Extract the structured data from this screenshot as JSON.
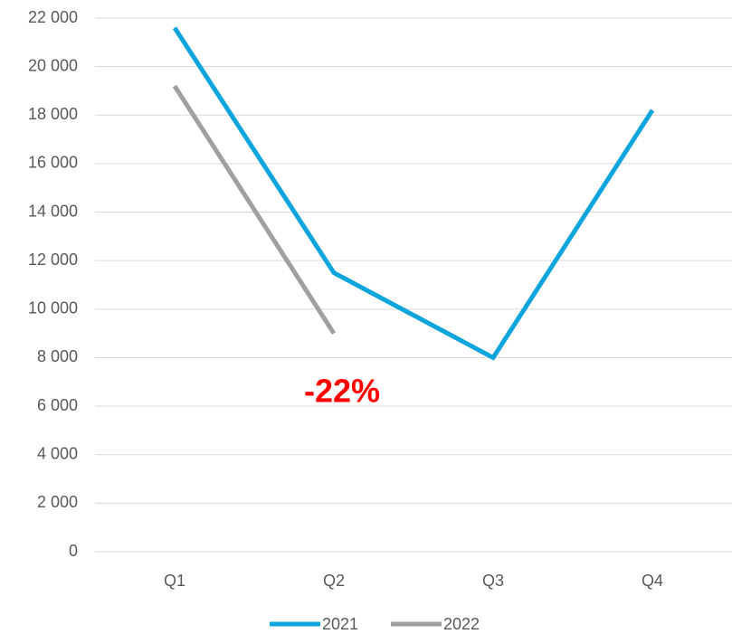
{
  "chart_data": {
    "type": "line",
    "categories": [
      "Q1",
      "Q2",
      "Q3",
      "Q4"
    ],
    "series": [
      {
        "name": "2021",
        "color": "#0ea5de",
        "values": [
          21600,
          11500,
          8000,
          18200
        ]
      },
      {
        "name": "2022",
        "color": "#a0a0a0",
        "values": [
          19200,
          9000,
          null,
          null
        ]
      }
    ],
    "ylim": [
      0,
      22000
    ],
    "yticks": [
      0,
      {
        "value": 2000,
        "label": "2 000"
      },
      {
        "value": 4000,
        "label": "4 000"
      },
      {
        "value": 6000,
        "label": "6 000"
      },
      {
        "value": 8000,
        "label": "8 000"
      },
      {
        "value": 10000,
        "label": "10 000"
      },
      {
        "value": 12000,
        "label": "12 000"
      },
      {
        "value": 14000,
        "label": "14 000"
      },
      {
        "value": 16000,
        "label": "16 000"
      },
      {
        "value": 18000,
        "label": "18 000"
      },
      {
        "value": 20000,
        "label": "20 000"
      },
      {
        "value": 22000,
        "label": "22 000"
      }
    ],
    "grid": true,
    "legend": "bottom",
    "annotation": {
      "text": "-22%",
      "color": "#ff0000"
    }
  }
}
